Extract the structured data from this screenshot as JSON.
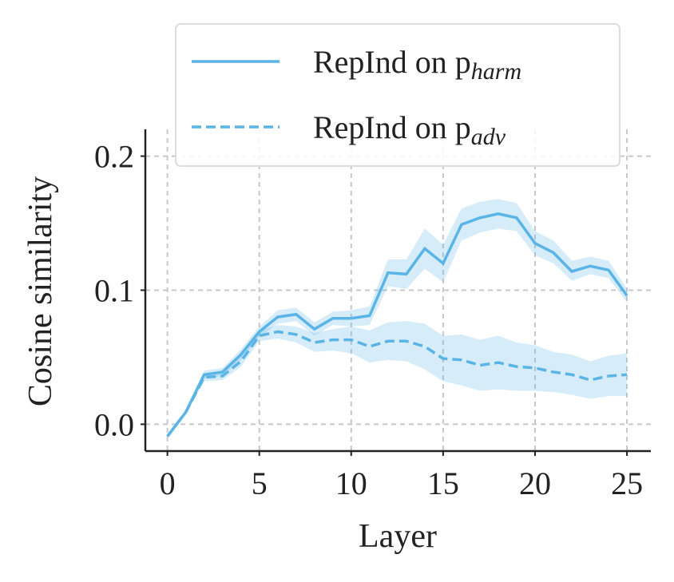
{
  "chart_data": {
    "type": "line",
    "x_label": "Layer",
    "y_label": "Cosine similarity",
    "x": [
      0,
      1,
      2,
      3,
      4,
      5,
      6,
      7,
      8,
      9,
      10,
      11,
      12,
      13,
      14,
      15,
      16,
      17,
      18,
      19,
      20,
      21,
      22,
      23,
      24,
      25
    ],
    "series": [
      {
        "name": "RepInd on p",
        "subscript": "harm",
        "color": "#5ab4e5",
        "dash": false,
        "values": [
          -0.009,
          0.009,
          0.037,
          0.039,
          0.052,
          0.069,
          0.08,
          0.082,
          0.071,
          0.079,
          0.079,
          0.081,
          0.113,
          0.112,
          0.131,
          0.12,
          0.149,
          0.154,
          0.157,
          0.154,
          0.135,
          0.128,
          0.114,
          0.118,
          0.115,
          0.096
        ],
        "lower": [
          -0.01,
          0.008,
          0.034,
          0.036,
          0.048,
          0.065,
          0.075,
          0.077,
          0.066,
          0.074,
          0.073,
          0.074,
          0.103,
          0.101,
          0.116,
          0.106,
          0.137,
          0.143,
          0.146,
          0.144,
          0.126,
          0.12,
          0.107,
          0.112,
          0.109,
          0.091
        ],
        "upper": [
          -0.008,
          0.01,
          0.04,
          0.042,
          0.056,
          0.073,
          0.085,
          0.087,
          0.076,
          0.084,
          0.085,
          0.088,
          0.123,
          0.123,
          0.146,
          0.134,
          0.161,
          0.166,
          0.168,
          0.165,
          0.144,
          0.137,
          0.122,
          0.125,
          0.122,
          0.101
        ]
      },
      {
        "name": "RepInd on p",
        "subscript": "adv",
        "color": "#5ab4e5",
        "dash": true,
        "values": [
          -0.009,
          0.009,
          0.035,
          0.036,
          0.047,
          0.066,
          0.069,
          0.067,
          0.061,
          0.063,
          0.063,
          0.058,
          0.062,
          0.062,
          0.058,
          0.049,
          0.048,
          0.044,
          0.046,
          0.043,
          0.042,
          0.039,
          0.037,
          0.033,
          0.036,
          0.037
        ],
        "lower": [
          -0.01,
          0.008,
          0.032,
          0.033,
          0.043,
          0.062,
          0.064,
          0.061,
          0.054,
          0.055,
          0.053,
          0.046,
          0.048,
          0.047,
          0.041,
          0.032,
          0.029,
          0.025,
          0.026,
          0.025,
          0.025,
          0.024,
          0.022,
          0.019,
          0.021,
          0.021
        ],
        "upper": [
          -0.008,
          0.01,
          0.038,
          0.039,
          0.051,
          0.07,
          0.074,
          0.073,
          0.068,
          0.071,
          0.073,
          0.07,
          0.076,
          0.077,
          0.075,
          0.066,
          0.067,
          0.063,
          0.066,
          0.061,
          0.059,
          0.054,
          0.052,
          0.047,
          0.051,
          0.053
        ]
      }
    ],
    "band_opacity": 0.25,
    "xlim": [
      -1.2,
      26.3
    ],
    "ylim": [
      -0.02,
      0.22
    ],
    "xticks": [
      0,
      5,
      10,
      15,
      20,
      25
    ],
    "yticks": [
      {
        "value": 0,
        "label": "0.0"
      },
      {
        "value": 0.1,
        "label": "0.1"
      },
      {
        "value": 0.2,
        "label": "0.2"
      }
    ],
    "grid": true,
    "legend": "top"
  }
}
